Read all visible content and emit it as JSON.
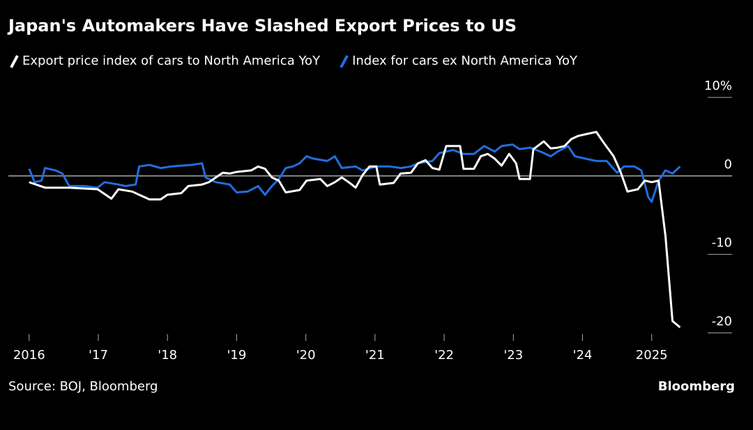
{
  "chart_data": {
    "type": "line",
    "title": "Japan's Automakers Have Slashed Export Prices to US",
    "source": "Source: BOJ, Bloomberg",
    "brand": "Bloomberg",
    "xlim": [
      2015.7,
      2025.9
    ],
    "xticks": [
      {
        "value": 2016,
        "label": "2016"
      },
      {
        "value": 2017,
        "label": "'17"
      },
      {
        "value": 2018,
        "label": "'18"
      },
      {
        "value": 2019,
        "label": "'19"
      },
      {
        "value": 2020,
        "label": "'20"
      },
      {
        "value": 2021,
        "label": "'21"
      },
      {
        "value": 2022,
        "label": "'22"
      },
      {
        "value": 2023,
        "label": "'23"
      },
      {
        "value": 2024,
        "label": "'24"
      },
      {
        "value": 2025,
        "label": "2025"
      }
    ],
    "ylim": [
      -20.5,
      10
    ],
    "yticks": [
      {
        "value": 10,
        "label": "10%"
      },
      0,
      -10,
      -20
    ],
    "series": [
      {
        "name": "Export price index of cars to North America YoY",
        "color": "#ffffff",
        "x": [
          2016.0,
          2016.23,
          2016.58,
          2016.99,
          2017.19,
          2017.29,
          2017.49,
          2017.59,
          2017.74,
          2017.9,
          2018.0,
          2018.2,
          2018.3,
          2018.5,
          2018.6,
          2018.7,
          2018.8,
          2018.9,
          2019.0,
          2019.21,
          2019.31,
          2019.41,
          2019.51,
          2019.61,
          2019.71,
          2019.91,
          2020.01,
          2020.21,
          2020.31,
          2020.42,
          2020.52,
          2020.62,
          2020.72,
          2020.82,
          2020.92,
          2021.02,
          2021.07,
          2021.27,
          2021.37,
          2021.52,
          2021.62,
          2021.73,
          2021.83,
          2021.93,
          2022.03,
          2022.23,
          2022.28,
          2022.43,
          2022.53,
          2022.63,
          2022.73,
          2022.83,
          2022.94,
          2023.04,
          2023.09,
          2023.24,
          2023.29,
          2023.44,
          2023.54,
          2023.64,
          2023.74,
          2023.84,
          2023.94,
          2024.04,
          2024.2,
          2024.3,
          2024.45,
          2024.55,
          2024.65,
          2024.8,
          2024.9,
          2025.0,
          2025.1,
          2025.2,
          2025.3,
          2025.41
        ],
        "values": [
          -0.8,
          -1.5,
          -1.5,
          -1.7,
          -2.9,
          -1.7,
          -2.0,
          -2.4,
          -3.0,
          -3.0,
          -2.4,
          -2.2,
          -1.3,
          -1.1,
          -0.8,
          -0.2,
          0.4,
          0.3,
          0.5,
          0.7,
          1.2,
          0.9,
          -0.2,
          -0.6,
          -2.1,
          -1.8,
          -0.6,
          -0.4,
          -1.3,
          -0.8,
          -0.2,
          -0.8,
          -1.5,
          0.1,
          1.2,
          1.2,
          -1.1,
          -0.9,
          0.3,
          0.4,
          1.6,
          2.0,
          1.0,
          0.8,
          3.8,
          3.8,
          0.9,
          0.9,
          2.5,
          2.8,
          2.2,
          1.3,
          2.8,
          1.6,
          -0.4,
          -0.4,
          3.4,
          4.4,
          3.5,
          3.6,
          3.8,
          4.7,
          5.1,
          5.3,
          5.6,
          4.3,
          2.5,
          0.5,
          -2.0,
          -1.7,
          -0.6,
          -0.8,
          -0.6,
          -7.7,
          -18.5,
          -19.3
        ]
      },
      {
        "name": "Index for cars ex North America YoY",
        "color": "#1f6fe0",
        "x": [
          2016.0,
          2016.08,
          2016.18,
          2016.23,
          2016.38,
          2016.48,
          2016.58,
          2016.79,
          2016.99,
          2017.09,
          2017.29,
          2017.39,
          2017.54,
          2017.59,
          2017.74,
          2017.9,
          2018.05,
          2018.2,
          2018.35,
          2018.5,
          2018.55,
          2018.7,
          2018.9,
          2019.0,
          2019.16,
          2019.31,
          2019.41,
          2019.51,
          2019.61,
          2019.71,
          2019.81,
          2019.91,
          2020.01,
          2020.11,
          2020.31,
          2020.42,
          2020.52,
          2020.72,
          2020.82,
          2021.02,
          2021.22,
          2021.37,
          2021.52,
          2021.62,
          2021.83,
          2021.93,
          2022.03,
          2022.13,
          2022.28,
          2022.43,
          2022.58,
          2022.73,
          2022.83,
          2022.99,
          2023.09,
          2023.24,
          2023.39,
          2023.54,
          2023.64,
          2023.79,
          2023.89,
          2024.04,
          2024.2,
          2024.35,
          2024.5,
          2024.6,
          2024.75,
          2024.85,
          2024.95,
          2025.0,
          2025.1,
          2025.2,
          2025.3,
          2025.41
        ],
        "values": [
          0.9,
          -0.8,
          -0.6,
          1.0,
          0.7,
          0.3,
          -1.3,
          -1.3,
          -1.5,
          -0.8,
          -1.1,
          -1.3,
          -1.1,
          1.2,
          1.4,
          1.0,
          1.2,
          1.3,
          1.4,
          1.6,
          -0.2,
          -0.8,
          -1.1,
          -2.1,
          -2.0,
          -1.3,
          -2.4,
          -1.3,
          -0.4,
          1.0,
          1.2,
          1.6,
          2.5,
          2.2,
          1.9,
          2.5,
          1.0,
          1.2,
          0.7,
          1.2,
          1.2,
          1.0,
          1.2,
          1.6,
          1.9,
          2.9,
          3.1,
          3.3,
          2.8,
          2.8,
          3.8,
          3.1,
          3.8,
          4.0,
          3.4,
          3.6,
          3.1,
          2.5,
          3.1,
          3.8,
          2.5,
          2.2,
          1.9,
          1.9,
          0.4,
          1.2,
          1.2,
          0.7,
          -2.7,
          -3.3,
          -0.6,
          0.7,
          0.3,
          1.2
        ]
      }
    ]
  }
}
